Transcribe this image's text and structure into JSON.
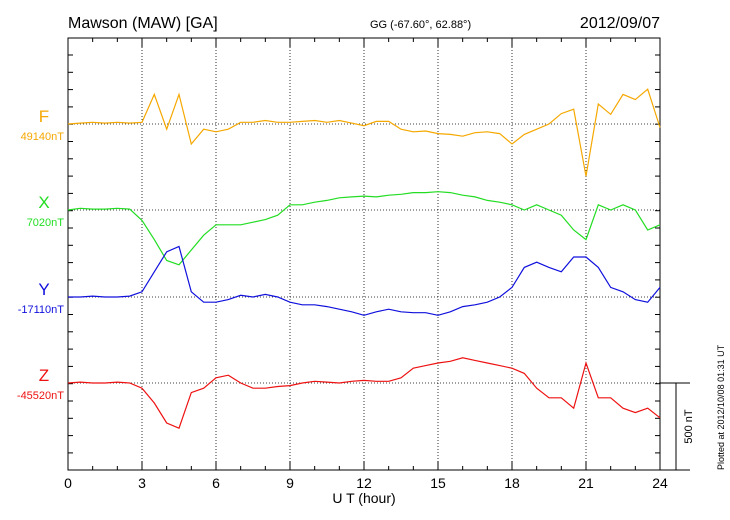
{
  "chart_data": {
    "type": "line",
    "title": "Mawson (MAW)  [GA]",
    "subtitle": "GG (-67.60°,  62.88°)",
    "date": "2012/09/07",
    "xlabel": "U T (hour)",
    "footnote": "Plotted at 2012/10/08 01:31  UT",
    "xlim": [
      0,
      24
    ],
    "xticks": [
      0,
      3,
      6,
      9,
      12,
      15,
      18,
      21,
      24
    ],
    "grid": true,
    "scale_bar": {
      "value": 500,
      "label": "500 nT"
    },
    "x": [
      0,
      0.5,
      1,
      1.5,
      2,
      2.5,
      3,
      3.5,
      4,
      4.5,
      5,
      5.5,
      6,
      6.5,
      7,
      7.5,
      8,
      8.5,
      9,
      9.5,
      10,
      10.5,
      11,
      11.5,
      12,
      12.5,
      13,
      13.5,
      14,
      14.5,
      15,
      15.5,
      16,
      16.5,
      17,
      17.5,
      18,
      18.5,
      19,
      19.5,
      20,
      20.5,
      21,
      21.5,
      22,
      22.5,
      23,
      23.5,
      24
    ],
    "series": [
      {
        "name": "F",
        "color": "#f5a800",
        "baseline": 49140,
        "baseline_label": "49140nT",
        "values": [
          49140,
          49145,
          49150,
          49145,
          49150,
          49145,
          49150,
          49310,
          49110,
          49310,
          49025,
          49110,
          49095,
          49110,
          49150,
          49150,
          49160,
          49150,
          49150,
          49155,
          49160,
          49150,
          49160,
          49145,
          49130,
          49155,
          49155,
          49110,
          49095,
          49100,
          49085,
          49080,
          49070,
          49090,
          49095,
          49085,
          49025,
          49080,
          49110,
          49140,
          49200,
          49225,
          48840,
          49255,
          49195,
          49310,
          49280,
          49340,
          49120
        ]
      },
      {
        "name": "X",
        "color": "#22dd22",
        "baseline": 7020,
        "baseline_label": "7020nT",
        "values": [
          7020,
          7030,
          7025,
          7025,
          7030,
          7025,
          6960,
          6850,
          6730,
          6705,
          6790,
          6875,
          6935,
          6935,
          6935,
          6950,
          6965,
          6990,
          7050,
          7050,
          7065,
          7075,
          7090,
          7095,
          7100,
          7095,
          7105,
          7110,
          7120,
          7120,
          7125,
          7120,
          7105,
          7095,
          7075,
          7065,
          7050,
          7020,
          7050,
          7020,
          6990,
          6905,
          6850,
          7050,
          7020,
          7050,
          7020,
          6905,
          6935
        ]
      },
      {
        "name": "Y",
        "color": "#1010dd",
        "baseline": -17110,
        "baseline_label": "-17110nT",
        "values": [
          -17110,
          -17110,
          -17105,
          -17110,
          -17110,
          -17105,
          -17080,
          -16965,
          -16850,
          -16820,
          -17080,
          -17140,
          -17140,
          -17125,
          -17100,
          -17110,
          -17095,
          -17110,
          -17140,
          -17155,
          -17155,
          -17165,
          -17180,
          -17195,
          -17215,
          -17195,
          -17180,
          -17195,
          -17200,
          -17200,
          -17215,
          -17195,
          -17165,
          -17155,
          -17140,
          -17110,
          -17055,
          -16940,
          -16910,
          -16940,
          -16965,
          -16880,
          -16880,
          -16940,
          -17055,
          -17080,
          -17125,
          -17140,
          -17055
        ]
      },
      {
        "name": "Z",
        "color": "#ee1111",
        "baseline": -45520,
        "baseline_label": "-45520nT",
        "values": [
          -45520,
          -45515,
          -45520,
          -45520,
          -45515,
          -45520,
          -45550,
          -45635,
          -45750,
          -45780,
          -45575,
          -45550,
          -45490,
          -45475,
          -45520,
          -45550,
          -45550,
          -45540,
          -45535,
          -45520,
          -45510,
          -45515,
          -45520,
          -45510,
          -45505,
          -45510,
          -45510,
          -45490,
          -45435,
          -45420,
          -45405,
          -45395,
          -45375,
          -45390,
          -45405,
          -45420,
          -45435,
          -45465,
          -45550,
          -45605,
          -45605,
          -45665,
          -45405,
          -45605,
          -45605,
          -45665,
          -45690,
          -45665,
          -45720
        ]
      }
    ]
  }
}
